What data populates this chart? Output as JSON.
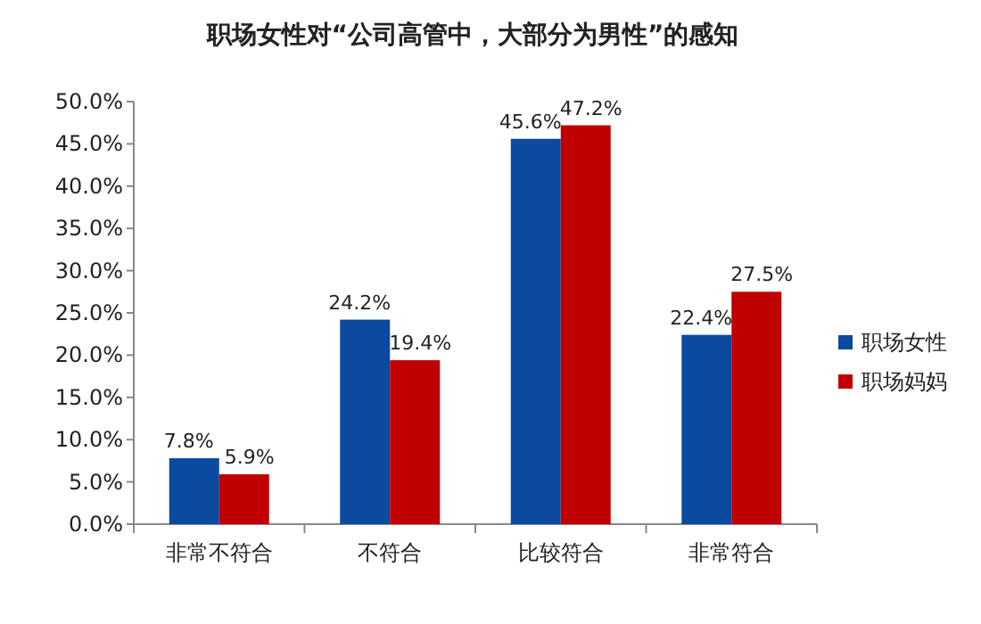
{
  "chart_data": {
    "type": "bar",
    "title": "职场女性对“公司高管中，大部分为男性”的感知",
    "categories": [
      "非常不符合",
      "不符合",
      "比较符合",
      "非常符合"
    ],
    "series": [
      {
        "name": "职场女性",
        "color": "#0b4a9e",
        "values": [
          7.8,
          24.2,
          45.6,
          22.4
        ],
        "value_labels": [
          "7.8%",
          "24.2%",
          "45.6%",
          "22.4%"
        ]
      },
      {
        "name": "职场妈妈",
        "color": "#c00000",
        "values": [
          5.9,
          19.4,
          47.2,
          27.5
        ],
        "value_labels": [
          "5.9%",
          "19.4%",
          "47.2%",
          "27.5%"
        ]
      }
    ],
    "ylim": [
      0,
      50
    ],
    "yticks": [
      {
        "value": 0,
        "label": "0.0%"
      },
      {
        "value": 5,
        "label": "5.0%"
      },
      {
        "value": 10,
        "label": "10.0%"
      },
      {
        "value": 15,
        "label": "15.0%"
      },
      {
        "value": 20,
        "label": "20.0%"
      },
      {
        "value": 25,
        "label": "25.0%"
      },
      {
        "value": 30,
        "label": "30.0%"
      },
      {
        "value": 35,
        "label": "35.0%"
      },
      {
        "value": 40,
        "label": "40.0%"
      },
      {
        "value": 45,
        "label": "45.0%"
      },
      {
        "value": 50,
        "label": "50.0%"
      }
    ],
    "grid": false,
    "legend": "right"
  }
}
